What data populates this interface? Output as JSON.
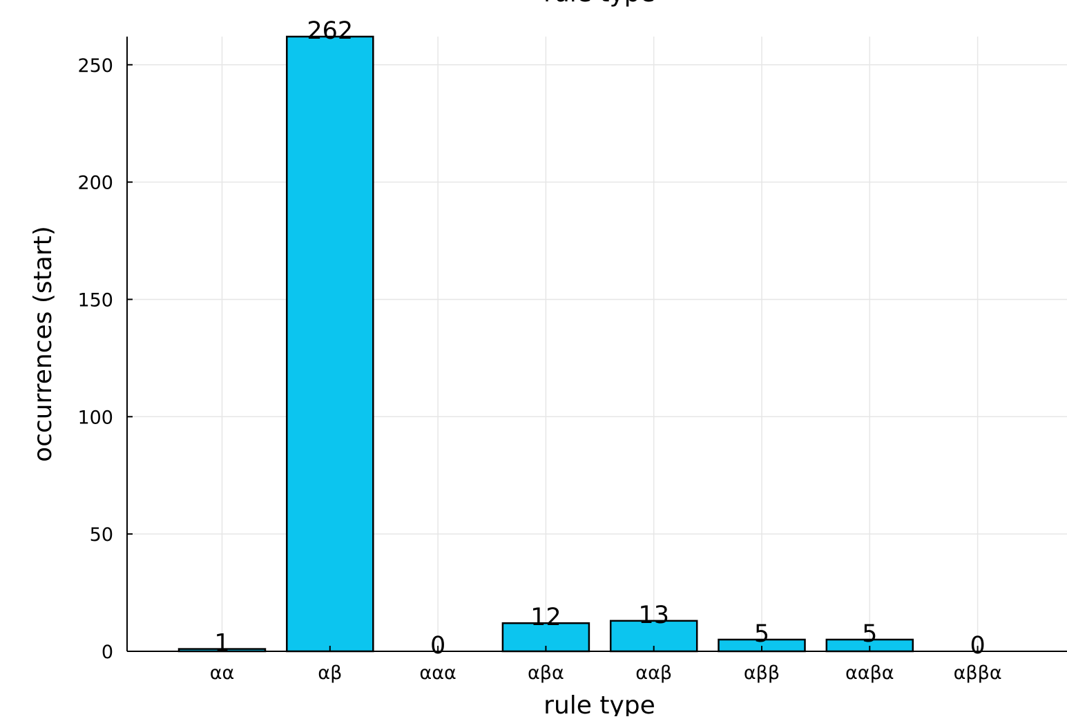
{
  "chart_data": {
    "type": "bar",
    "title": "rule type",
    "xlabel": "rule type",
    "ylabel": "occurrences (start)",
    "categories": [
      "αα",
      "αβ",
      "ααα",
      "αβα",
      "ααβ",
      "αββ",
      "ααβα",
      "αββα"
    ],
    "values": [
      1,
      262,
      0,
      12,
      13,
      5,
      5,
      0
    ],
    "data_labels": [
      "1",
      "262",
      "0",
      "12",
      "13",
      "5",
      "5",
      "0"
    ],
    "ylim": [
      0,
      262
    ],
    "yticks": [
      0,
      50,
      100,
      150,
      200,
      250
    ],
    "ytick_labels": [
      "0",
      "50",
      "100",
      "150",
      "200",
      "250"
    ],
    "bar_color": "#0cc5ef",
    "grid": true,
    "legend": false
  }
}
